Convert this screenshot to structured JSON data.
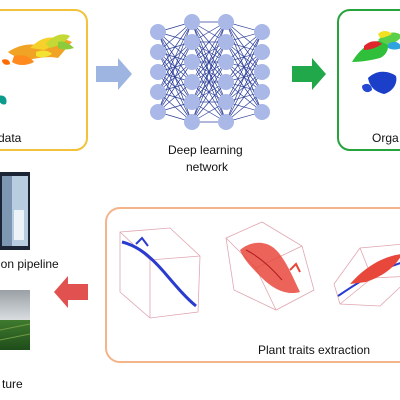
{
  "labels": {
    "input_data": "data",
    "network_line1": "Deep learning",
    "network_line2": "network",
    "organ_output": "Orga",
    "pipeline": "ion pipeline",
    "traits": "Plant traits extraction",
    "culture": "ture"
  },
  "colors": {
    "input_frame": "#f2c23a",
    "output_frame": "#26a33c",
    "traits_frame": "#f3b48a",
    "arrow_blue": "#9db5e0",
    "arrow_green": "#21a84a",
    "arrow_red": "#e0514f",
    "neuron": "#a9b8e6",
    "edge": "#2b3f9a"
  },
  "network": {
    "layer_sizes": [
      5,
      6,
      6,
      5
    ]
  }
}
